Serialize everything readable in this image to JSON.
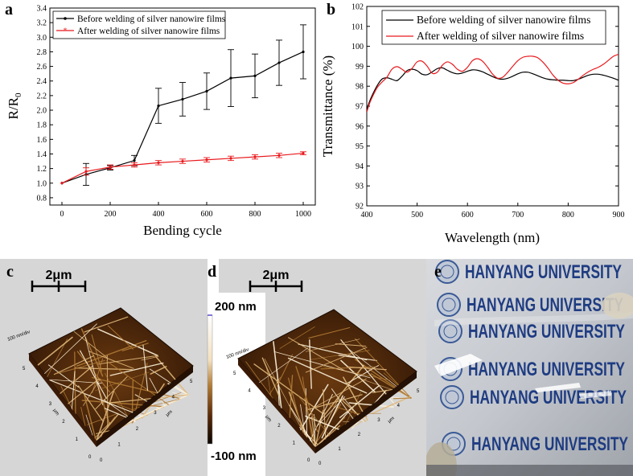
{
  "panel_labels": {
    "a": "a",
    "b": "b",
    "c": "c",
    "d": "d",
    "e": "e"
  },
  "chart_data": [
    {
      "type": "line",
      "panel": "a",
      "xlabel": "Bending cycle",
      "ylabel_main": "R/R",
      "ylabel_sub": "0",
      "xlim": [
        -50,
        1050
      ],
      "ylim": [
        0.7,
        3.4
      ],
      "xticks": [
        0,
        200,
        400,
        600,
        800,
        1000
      ],
      "yticks": [
        0.8,
        1.0,
        1.2,
        1.4,
        1.6,
        1.8,
        2.0,
        2.2,
        2.4,
        2.6,
        2.8,
        3.0,
        3.2,
        3.4
      ],
      "ytick_labels": [
        "0.8",
        "1.0",
        "1.2",
        "1.4",
        "1.6",
        "1.8",
        "2.0",
        "2.2",
        "2.4",
        "2.6",
        "2.8",
        "3.0",
        "3.2",
        "3.4"
      ],
      "legend": [
        "Before welding of silver nanowire films",
        "After welding of silver nanowire films"
      ],
      "x": [
        0,
        100,
        200,
        300,
        400,
        500,
        600,
        700,
        800,
        900,
        1000
      ],
      "series": [
        {
          "name": "Before welding of silver nanowire films",
          "color": "#000000",
          "values": [
            1.0,
            1.12,
            1.21,
            1.31,
            2.06,
            2.15,
            2.26,
            2.44,
            2.47,
            2.65,
            2.8
          ],
          "errors": [
            0.0,
            0.15,
            0.03,
            0.07,
            0.24,
            0.23,
            0.25,
            0.39,
            0.3,
            0.31,
            0.37
          ]
        },
        {
          "name": "After welding of silver nanowire films",
          "color": "#e8191d",
          "values": [
            1.0,
            1.16,
            1.22,
            1.25,
            1.28,
            1.3,
            1.32,
            1.34,
            1.36,
            1.38,
            1.41
          ],
          "errors": [
            0.0,
            0.05,
            0.03,
            0.03,
            0.03,
            0.03,
            0.03,
            0.03,
            0.03,
            0.03,
            0.02
          ]
        }
      ]
    },
    {
      "type": "line",
      "panel": "b",
      "xlabel": "Wavelength (nm)",
      "ylabel": "Transmittance (%)",
      "xlim": [
        400,
        900
      ],
      "ylim": [
        92,
        102
      ],
      "xticks": [
        400,
        500,
        600,
        700,
        800,
        900
      ],
      "yticks": [
        92,
        93,
        94,
        95,
        96,
        97,
        98,
        99,
        100,
        101,
        102
      ],
      "legend": [
        "Before welding of silver nanowire films",
        "After welding of silver nanowire films"
      ],
      "x": [
        400,
        405,
        410,
        420,
        430,
        440,
        450,
        460,
        470,
        480,
        490,
        500,
        510,
        520,
        530,
        540,
        550,
        560,
        570,
        580,
        590,
        600,
        610,
        620,
        630,
        640,
        650,
        660,
        670,
        680,
        690,
        700,
        710,
        720,
        730,
        740,
        750,
        760,
        770,
        780,
        790,
        800,
        810,
        820,
        830,
        840,
        850,
        860,
        870,
        880,
        890,
        900
      ],
      "series": [
        {
          "name": "Before welding of silver nanowire films",
          "color": "#000000",
          "values": [
            96.8,
            97.2,
            97.5,
            98.0,
            98.35,
            98.42,
            98.35,
            98.28,
            98.5,
            98.78,
            98.85,
            98.78,
            98.6,
            98.58,
            98.72,
            98.88,
            98.92,
            98.8,
            98.68,
            98.62,
            98.66,
            98.75,
            98.82,
            98.8,
            98.72,
            98.6,
            98.48,
            98.38,
            98.35,
            98.4,
            98.5,
            98.62,
            98.7,
            98.7,
            98.62,
            98.52,
            98.42,
            98.35,
            98.32,
            98.3,
            98.3,
            98.28,
            98.28,
            98.35,
            98.45,
            98.55,
            98.6,
            98.6,
            98.55,
            98.48,
            98.4,
            98.3
          ]
        },
        {
          "name": "After welding of silver nanowire films",
          "color": "#e8191d",
          "values": [
            96.7,
            97.1,
            97.4,
            97.9,
            98.2,
            98.45,
            98.85,
            98.98,
            98.85,
            98.7,
            98.9,
            99.22,
            99.25,
            99.0,
            98.65,
            98.7,
            99.05,
            99.22,
            99.1,
            98.85,
            98.75,
            98.95,
            99.28,
            99.38,
            99.25,
            98.95,
            98.6,
            98.4,
            98.45,
            98.7,
            99.0,
            99.28,
            99.45,
            99.5,
            99.5,
            99.42,
            99.2,
            98.9,
            98.55,
            98.3,
            98.15,
            98.12,
            98.18,
            98.35,
            98.55,
            98.72,
            98.85,
            98.95,
            99.1,
            99.3,
            99.5,
            99.6
          ]
        }
      ]
    }
  ],
  "afm_c": {
    "scale_label": "2μm",
    "z_label": "100 nm/div",
    "x_axis_title": "μm",
    "y_axis_title": "μm"
  },
  "afm_d": {
    "scale_label": "2μm",
    "z_label": "100 nm/div",
    "x_axis_title": "μm",
    "y_axis_title": "μm"
  },
  "colorbar": {
    "top_label": "200 nm",
    "bottom_label": "-100 nm"
  },
  "afm_ticks": [
    "0",
    "1",
    "2",
    "3",
    "4",
    "5"
  ],
  "photo_e": {
    "text_lines": [
      "HANYANG UNIVERSITY",
      "HANYANG UNIVERSITY",
      "HANYANG UNIVERSITY",
      "HANYANG UNIVERSITY",
      "HANYANG UNIVERSITY",
      "HANYANG UNIVERSITY"
    ],
    "colors": {
      "text": "#1f3c82",
      "background": "#c9ccd1"
    }
  }
}
